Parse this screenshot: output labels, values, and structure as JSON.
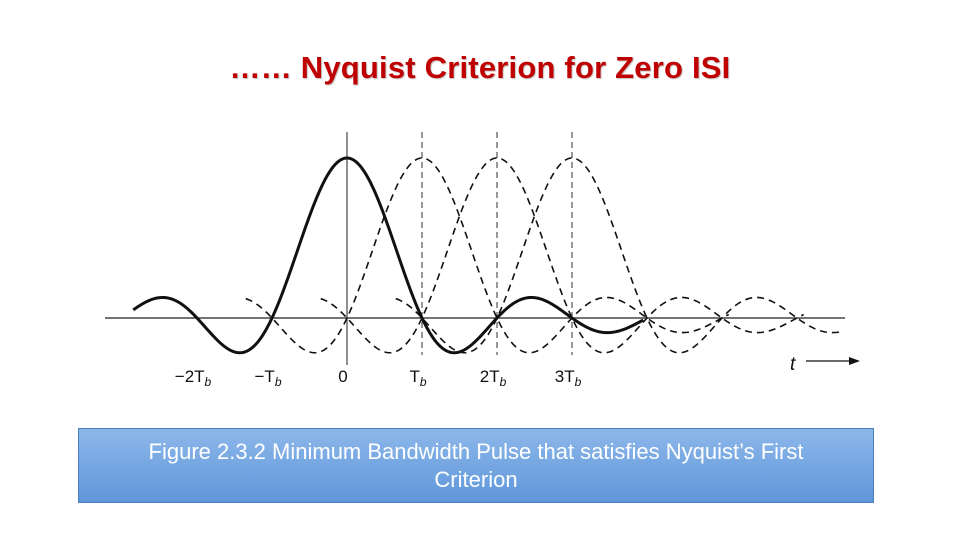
{
  "title": "…… Nyquist Criterion for Zero ISI",
  "caption": "Figure 2.3.2  Minimum Bandwidth Pulse that satisfies Nyquist’s First Criterion",
  "axis": {
    "time_label": "t",
    "ticks": [
      {
        "value": -2,
        "main": "−2T",
        "sub": "b"
      },
      {
        "value": -1,
        "main": "−T",
        "sub": "b"
      },
      {
        "value": 0,
        "main": "0",
        "sub": ""
      },
      {
        "value": 1,
        "main": "T",
        "sub": "b"
      },
      {
        "value": 2,
        "main": "2T",
        "sub": "b"
      },
      {
        "value": 3,
        "main": "3T",
        "sub": "b"
      }
    ]
  },
  "pulses": [
    {
      "center": 0,
      "style": "solid"
    },
    {
      "center": 1,
      "style": "dashed"
    },
    {
      "center": 2,
      "style": "dashed"
    },
    {
      "center": 3,
      "style": "dashed"
    }
  ],
  "colors": {
    "title": "#c00000",
    "caption_bg": "#6fa3e0",
    "caption_text": "#ffffff"
  }
}
